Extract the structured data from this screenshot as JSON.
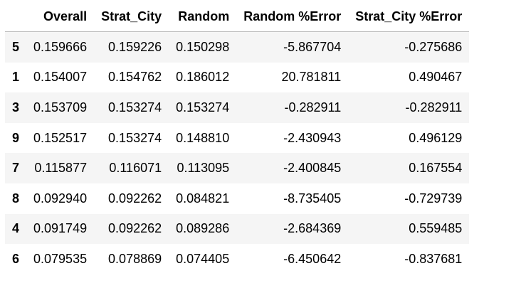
{
  "table": {
    "columns": [
      "",
      "Overall",
      "Strat_City",
      "Random",
      "Random %Error",
      "Strat_City %Error"
    ],
    "rows": [
      [
        "5",
        "0.159666",
        "0.159226",
        "0.150298",
        "-5.867704",
        "-0.275686"
      ],
      [
        "1",
        "0.154007",
        "0.154762",
        "0.186012",
        "20.781811",
        "0.490467"
      ],
      [
        "3",
        "0.153709",
        "0.153274",
        "0.153274",
        "-0.282911",
        "-0.282911"
      ],
      [
        "9",
        "0.152517",
        "0.153274",
        "0.148810",
        "-2.430943",
        "0.496129"
      ],
      [
        "7",
        "0.115877",
        "0.116071",
        "0.113095",
        "-2.400845",
        "0.167554"
      ],
      [
        "8",
        "0.092940",
        "0.092262",
        "0.084821",
        "-8.735405",
        "-0.729739"
      ],
      [
        "4",
        "0.091749",
        "0.092262",
        "0.089286",
        "-2.684369",
        "0.559485"
      ],
      [
        "6",
        "0.079535",
        "0.078869",
        "0.074405",
        "-6.450642",
        "-0.837681"
      ]
    ]
  }
}
